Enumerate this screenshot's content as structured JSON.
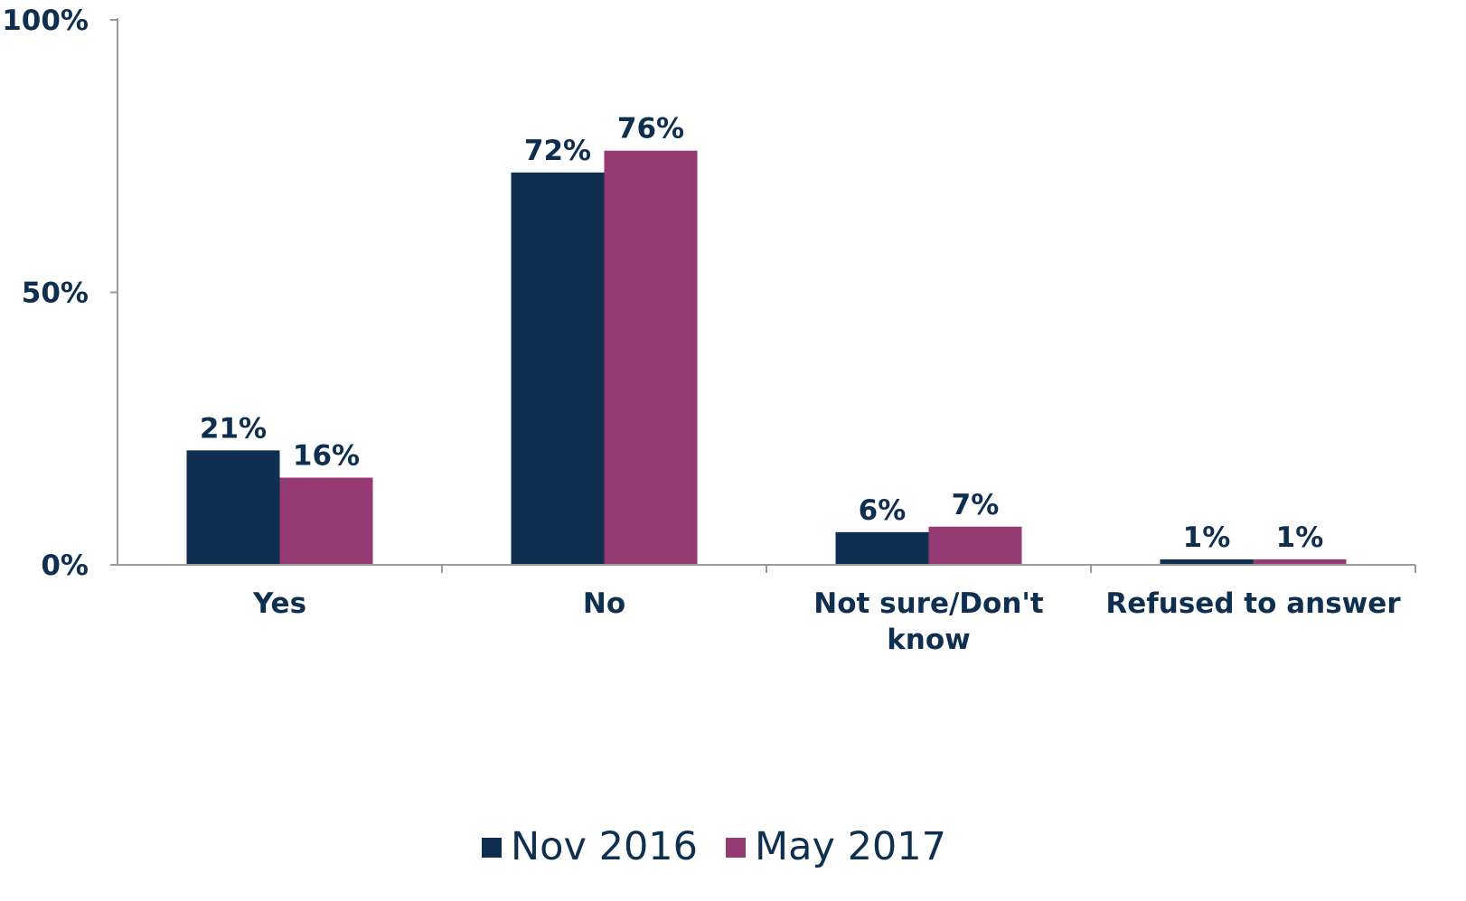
{
  "chart_data": {
    "type": "bar",
    "categories": [
      [
        "Yes"
      ],
      [
        "No"
      ],
      [
        "Not sure/Don't",
        "know"
      ],
      [
        "Refused to answer"
      ]
    ],
    "series": [
      {
        "name": "Nov 2016",
        "values": [
          21,
          72,
          6,
          1
        ],
        "labels": [
          "21%",
          "72%",
          "6%",
          "1%"
        ],
        "color": "#0e2f4f"
      },
      {
        "name": "May 2017",
        "values": [
          16,
          76,
          7,
          1
        ],
        "labels": [
          "16%",
          "76%",
          "7%",
          "1%"
        ],
        "color": "#963a74"
      }
    ],
    "yticks": [
      {
        "value": 0,
        "label": "0%"
      },
      {
        "value": 50,
        "label": "50%"
      },
      {
        "value": 100,
        "label": "100%"
      }
    ],
    "ylim": [
      0,
      100
    ],
    "grid": false,
    "legend_position": "bottom",
    "axis_color": "#9a9a9a",
    "text_color": "#0e2f4f"
  }
}
